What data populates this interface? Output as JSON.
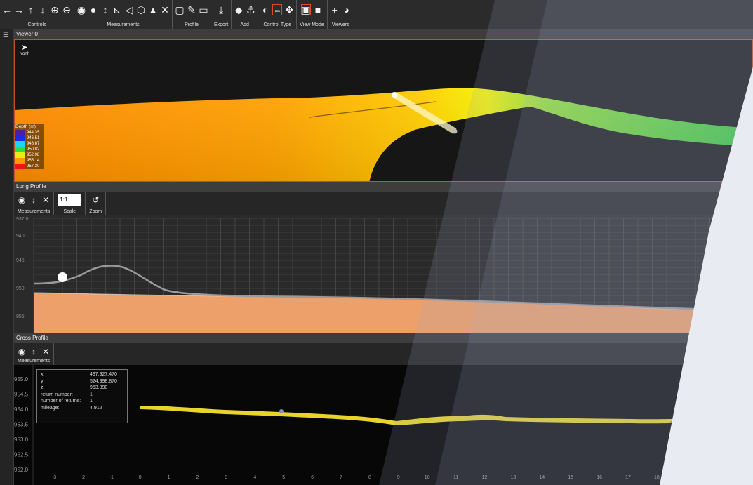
{
  "toolbar": {
    "groups": [
      {
        "label": "Controls",
        "icons": [
          "←",
          "→",
          "↑",
          "↓",
          "⊕",
          "⊖"
        ]
      },
      {
        "label": "Measurements",
        "icons": [
          "◉",
          "●",
          "↕",
          "⊾",
          "◁",
          "⬡",
          "▲",
          "✕"
        ]
      },
      {
        "label": "Profile",
        "icons": [
          "▢",
          "✎",
          "▭"
        ]
      },
      {
        "label": "Export",
        "icons": [
          "⤓"
        ]
      },
      {
        "label": "Add",
        "icons": [
          "◆",
          "⚓"
        ]
      },
      {
        "label": "Control Type",
        "icons": [
          "◐",
          "⇔",
          "✥"
        ]
      },
      {
        "label": "View Mode",
        "icons": [
          "▣",
          "■"
        ]
      },
      {
        "label": "Viewers",
        "icons": [
          "+",
          "◕"
        ]
      }
    ]
  },
  "viewer": {
    "title": "Viewer 0",
    "north_label": "North",
    "legend": {
      "title": "Depth (m)",
      "entries": [
        {
          "value": "944.35",
          "color": "#4b1fa8"
        },
        {
          "value": "946.51",
          "color": "#1f29e6"
        },
        {
          "value": "948.67",
          "color": "#1fd6f0"
        },
        {
          "value": "950.82",
          "color": "#2fdc4a"
        },
        {
          "value": "952.98",
          "color": "#e6ef14"
        },
        {
          "value": "955.14",
          "color": "#ff9a00"
        },
        {
          "value": "957.30",
          "color": "#f01414"
        }
      ]
    }
  },
  "long_profile": {
    "title": "Long Profile",
    "tools": {
      "measurements_label": "Measurements",
      "scale_label": "Scale",
      "scale_value": "1:1",
      "zoom_label": "Zoom"
    },
    "y_ticks": [
      "937.0",
      "940",
      "945",
      "950",
      "955"
    ]
  },
  "cross_profile": {
    "title": "Cross Profile",
    "tools": {
      "measurements_label": "Measurements"
    },
    "y_ticks": [
      "955.0",
      "954.5",
      "954.0",
      "953.5",
      "953.0",
      "952.5",
      "952.0"
    ],
    "x_ticks": [
      "-3",
      "-2",
      "-1",
      "0",
      "1",
      "2",
      "3",
      "4",
      "5",
      "6",
      "7",
      "8",
      "9",
      "10",
      "11",
      "12",
      "13",
      "14",
      "15",
      "16",
      "17",
      "18"
    ],
    "info": [
      {
        "key": "x:",
        "value": "437,927.470"
      },
      {
        "key": "y:",
        "value": "524,998.870"
      },
      {
        "key": "z:",
        "value": "953.890"
      },
      {
        "key": "return number:",
        "value": "1"
      },
      {
        "key": "number of returns:",
        "value": "1"
      },
      {
        "key": "mileage:",
        "value": "4.912"
      }
    ]
  }
}
